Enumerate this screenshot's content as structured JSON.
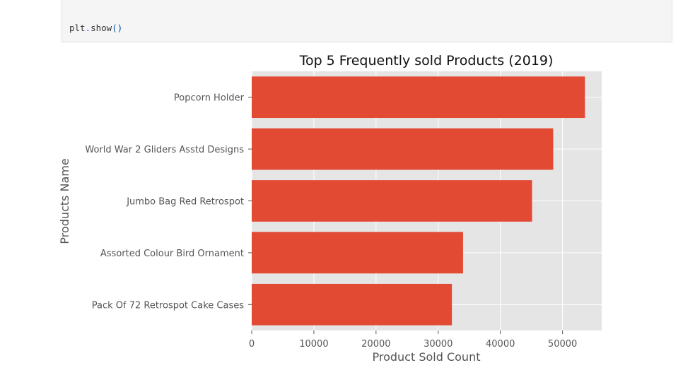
{
  "code_cell": {
    "object": "plt",
    "method": "show",
    "parens": "()"
  },
  "chart_data": {
    "type": "bar",
    "orientation": "horizontal",
    "title": "Top 5 Frequently sold Products (2019)",
    "xlabel": "Product Sold Count",
    "ylabel": "Products Name",
    "categories": [
      "Popcorn Holder",
      "World War 2 Gliders Asstd Designs",
      "Jumbo Bag Red Retrospot",
      "Assorted Colour Bird Ornament",
      "Pack Of 72 Retrospot Cake Cases"
    ],
    "values": [
      53600,
      48500,
      45100,
      34000,
      32200
    ],
    "xlim": [
      0,
      56300
    ],
    "xticks": [
      0,
      10000,
      20000,
      30000,
      40000,
      50000
    ],
    "bar_color": "#e24a33",
    "plot_background": "#e5e5e5",
    "grid": true
  }
}
